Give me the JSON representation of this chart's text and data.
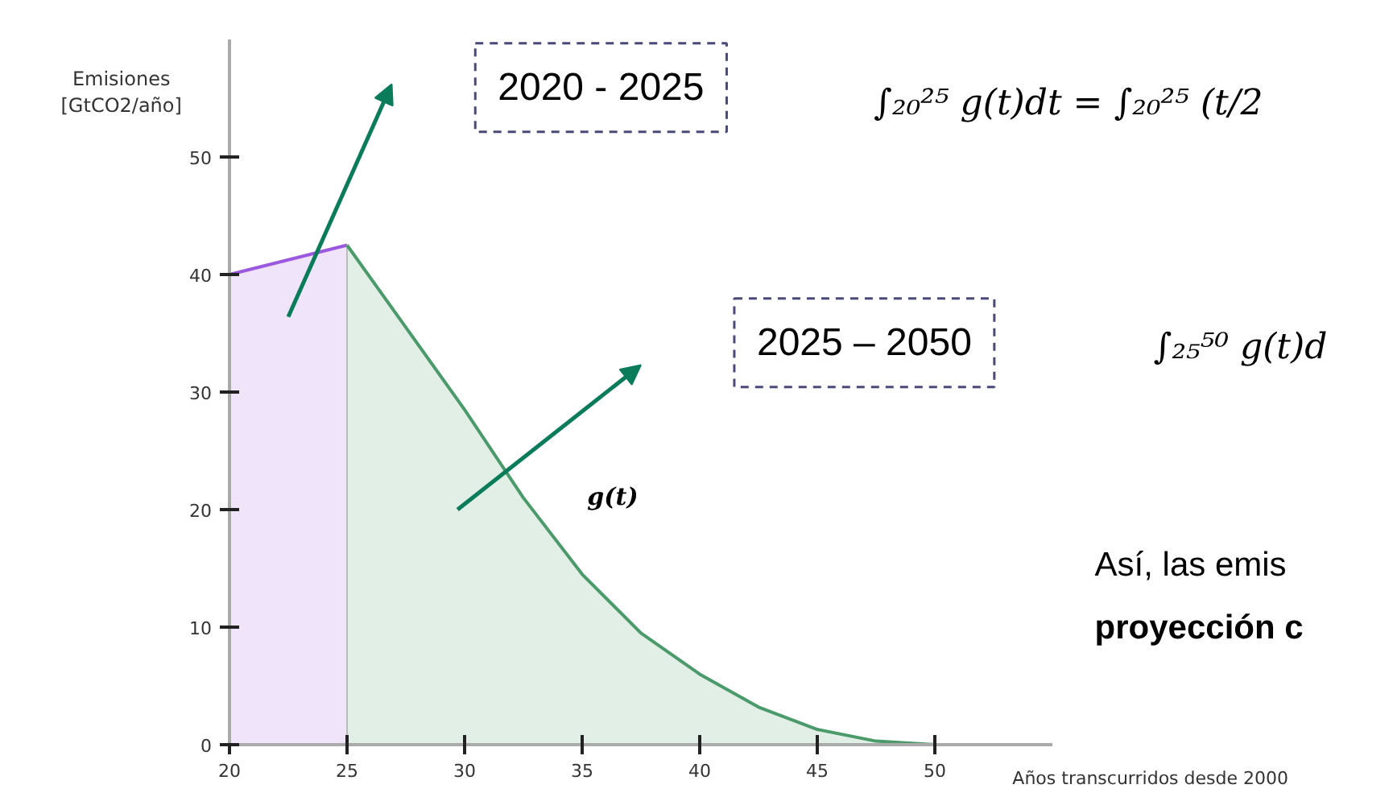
{
  "chart_data": {
    "type": "area",
    "xlabel": "Años transcurridos desde 2000",
    "ylabel": "Emisiones\n[GtCO2/año]",
    "xlim": [
      20,
      55
    ],
    "ylim": [
      0,
      60
    ],
    "xticks": [
      20,
      25,
      30,
      35,
      40,
      45,
      50
    ],
    "yticks": [
      0,
      10,
      20,
      30,
      40,
      50
    ],
    "grid": false,
    "series": [
      {
        "color": "#9b59e0",
        "x": [
          20,
          25
        ],
        "values": [
          40,
          42.5
        ]
      },
      {
        "color": "#4a9a6a",
        "x": [
          25,
          27.5,
          30,
          32.5,
          35,
          37.5,
          40,
          42.5,
          45,
          47.5,
          50
        ],
        "values": [
          42.5,
          35.5,
          28.5,
          21,
          14.5,
          9.5,
          6,
          3.2,
          1.3,
          0.3,
          0
        ]
      }
    ],
    "annotations": [
      "2020 - 2025",
      "2025 – 2050",
      "g(t)",
      "∫₂₀²⁵ g(t)dt = ∫₂₀²⁵ (t/2",
      "∫₂₅⁵⁰ g(t)d",
      "Así, las emis",
      "proyección c"
    ]
  }
}
